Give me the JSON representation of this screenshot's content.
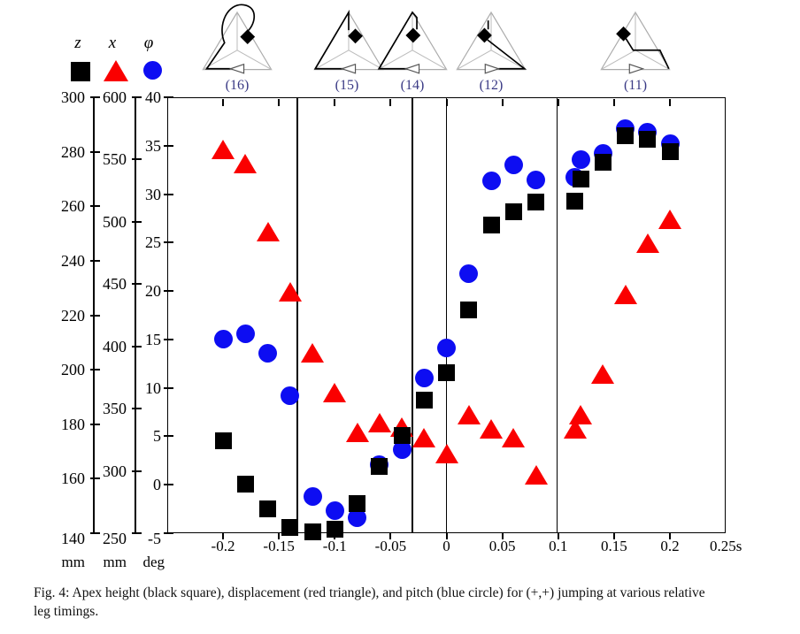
{
  "figure": {
    "caption_line1": "Fig. 4: Apex height (black square), displacement (red triangle), and pitch (blue circle) for (+,+) jumping at various relative",
    "caption_line2": "leg timings."
  },
  "legend": {
    "items": [
      {
        "label": "z",
        "marker": "black-square",
        "color": "#000000"
      },
      {
        "label": "x",
        "marker": "red-triangle",
        "color": "#fa0000"
      },
      {
        "label": "φ",
        "marker": "blue-circle",
        "color": "#0d0df2"
      }
    ]
  },
  "axes": {
    "z": {
      "name": "apex height",
      "unit": "mm",
      "ticks": [
        300,
        280,
        260,
        240,
        220,
        200,
        180,
        160,
        140
      ],
      "range": [
        140,
        300
      ]
    },
    "x": {
      "name": "displacement",
      "unit": "mm",
      "ticks": [
        600,
        550,
        500,
        450,
        400,
        350,
        300,
        250
      ],
      "range": [
        250,
        600
      ]
    },
    "phi": {
      "name": "pitch",
      "unit": "deg",
      "ticks": [
        40,
        35,
        30,
        25,
        20,
        15,
        10,
        5,
        0,
        -5
      ],
      "range": [
        -5,
        40
      ]
    },
    "time": {
      "unit": "s",
      "tick_labels": [
        "-0.2",
        "-0.15",
        "-0.1",
        "-0.05",
        "0",
        "0.05",
        "0.1",
        "0.15",
        "0.2",
        "0.25s"
      ],
      "tick_values": [
        -0.2,
        -0.15,
        -0.1,
        -0.05,
        0,
        0.05,
        0.1,
        0.15,
        0.2,
        0.25
      ],
      "range": [
        -0.25,
        0.25
      ]
    }
  },
  "regions": {
    "labels": [
      "(16)",
      "(15)",
      "(14)",
      "(12)",
      "(11)"
    ],
    "divider_times": [
      -0.1335,
      -0.0305,
      0,
      0.099
    ],
    "label_color": "#3a3a85"
  },
  "chart_data": {
    "type": "scatter",
    "title": "Apex height, displacement and pitch vs relative leg timing",
    "x_axis": {
      "label": "relative leg timing",
      "unit": "s",
      "range": [
        -0.25,
        0.25
      ]
    },
    "t": [
      -0.2,
      -0.18,
      -0.16,
      -0.14,
      -0.12,
      -0.1,
      -0.08,
      -0.06,
      -0.04,
      -0.02,
      0,
      0.02,
      0.04,
      0.06,
      0.08,
      0.115,
      0.12,
      0.14,
      0.16,
      0.18,
      0.2
    ],
    "series": [
      {
        "name": "z apex height (mm)",
        "marker": "square",
        "color": "#000000",
        "axis": "z",
        "values": [
          174,
          158,
          149,
          142,
          140.5,
          141.5,
          151,
          164.5,
          176,
          189,
          199,
          222,
          253,
          258,
          261.5,
          262,
          270,
          276,
          286,
          284.5,
          280
        ]
      },
      {
        "name": "x displacement (mm)",
        "marker": "triangle",
        "color": "#fa0000",
        "axis": "x",
        "values": [
          558,
          547,
          492,
          444,
          395,
          363,
          331,
          339,
          335,
          327,
          314,
          345,
          334,
          327,
          297,
          334,
          345,
          378,
          442,
          483,
          502
        ]
      },
      {
        "name": "phi pitch (deg)",
        "marker": "circle",
        "color": "#0d0df2",
        "axis": "phi",
        "values": [
          15,
          15.6,
          13.6,
          9.2,
          -1.2,
          -2.7,
          -3.4,
          2.1,
          3.6,
          11,
          14.1,
          21.8,
          31.4,
          33,
          31.5,
          31.7,
          33.6,
          34.2,
          36.8,
          36.4,
          35.2
        ]
      }
    ]
  }
}
